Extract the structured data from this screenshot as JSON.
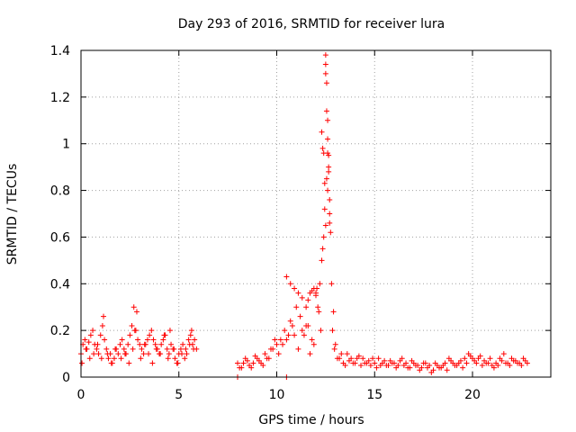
{
  "chart_data": {
    "type": "scatter",
    "title": "Day 293 of 2016, SRMTID for receiver lura",
    "xlabel": "GPS time / hours",
    "ylabel": "SRMTID / TECUs",
    "xlim": [
      0,
      24
    ],
    "ylim": [
      0,
      1.4
    ],
    "xticks": [
      "0",
      "5",
      "10",
      "15",
      "20"
    ],
    "yticks": [
      "0",
      "0.2",
      "0.4",
      "0.6",
      "0.8",
      "1",
      "1.2",
      "1.4"
    ],
    "grid": true,
    "marker": "+",
    "series_color": "#ff0000",
    "series": [
      {
        "x": [
          0.0,
          0.1,
          0.2,
          0.3,
          0.4,
          0.5,
          0.6,
          0.7,
          0.8,
          0.9,
          1.0,
          1.1,
          1.2,
          1.3,
          1.4,
          1.5,
          1.6,
          1.7,
          1.8,
          1.9,
          2.0,
          2.1,
          2.2,
          2.3,
          2.4,
          2.5,
          2.6,
          2.7,
          2.8,
          2.9,
          3.0,
          3.1,
          3.2,
          3.3,
          3.4,
          3.5,
          3.6,
          3.7,
          3.8,
          3.9,
          4.0,
          4.1,
          4.2,
          4.3,
          4.4,
          4.5,
          4.6,
          4.7,
          4.8,
          4.9,
          5.0,
          5.1,
          5.2,
          5.3,
          5.4,
          5.5,
          5.6,
          5.7,
          5.8,
          5.9,
          0.05,
          0.25,
          0.45,
          0.65,
          0.85,
          1.05,
          1.15,
          1.35,
          1.55,
          1.75,
          2.05,
          2.25,
          2.45,
          2.65,
          2.75,
          2.85,
          3.05,
          3.25,
          3.45,
          3.65,
          3.85,
          4.05,
          4.25,
          4.45,
          4.55,
          4.75,
          4.95,
          5.15,
          5.35,
          5.55,
          5.65,
          5.75,
          8.0,
          8.2,
          8.4,
          8.6,
          8.8,
          9.0,
          9.2,
          9.4,
          9.6,
          9.8,
          10.0,
          10.2,
          10.4,
          10.6,
          10.8,
          11.0,
          11.2,
          11.4,
          11.6,
          11.8,
          12.0,
          12.1,
          12.2,
          12.3,
          12.4,
          12.5,
          12.6,
          12.7,
          12.8,
          12.9,
          13.0,
          13.2,
          13.4,
          13.6,
          13.8,
          14.0,
          14.2,
          14.4,
          14.6,
          14.8,
          15.0,
          15.2,
          15.4,
          15.6,
          15.8,
          16.0,
          16.2,
          16.4,
          16.6,
          16.8,
          17.0,
          17.2,
          17.4,
          17.6,
          17.8,
          18.0,
          18.2,
          18.4,
          18.6,
          18.8,
          19.0,
          19.2,
          19.4,
          19.6,
          19.8,
          20.0,
          20.2,
          20.4,
          20.6,
          20.8,
          21.0,
          21.2,
          21.4,
          21.6,
          21.8,
          22.0,
          22.2,
          22.4,
          22.6,
          22.8,
          8.1,
          8.3,
          8.5,
          8.7,
          8.9,
          9.1,
          9.3,
          9.5,
          9.7,
          9.9,
          10.1,
          10.3,
          10.5,
          10.7,
          10.9,
          11.1,
          11.3,
          11.5,
          11.7,
          11.9,
          12.05,
          12.15,
          12.25,
          12.35,
          12.45,
          12.55,
          12.65,
          12.75,
          12.85,
          12.95,
          13.1,
          13.3,
          13.5,
          13.7,
          13.9,
          14.1,
          14.3,
          14.5,
          14.7,
          14.9,
          15.1,
          15.3,
          15.5,
          15.7,
          15.9,
          16.1,
          16.3,
          16.5,
          16.7,
          16.9,
          17.1,
          17.3,
          17.5,
          17.7,
          17.9,
          18.1,
          18.3,
          18.5,
          18.7,
          18.9,
          19.1,
          19.3,
          19.5,
          19.7,
          19.9,
          20.1,
          20.3,
          20.5,
          20.7,
          20.9,
          21.1,
          21.3,
          21.5,
          21.7,
          21.9,
          22.1,
          22.3,
          22.5,
          22.7,
          12.5,
          12.5,
          12.5,
          12.55,
          12.55,
          12.6,
          12.6,
          12.6,
          12.65,
          12.65,
          12.7,
          12.7,
          12.3,
          12.35,
          12.4,
          12.45,
          11.5,
          11.6,
          11.7,
          11.8,
          11.9,
          12.0,
          10.5,
          10.7,
          10.9,
          11.1,
          11.3,
          8.0,
          10.5
        ],
        "y": [
          0.1,
          0.14,
          0.16,
          0.12,
          0.15,
          0.18,
          0.2,
          0.14,
          0.12,
          0.1,
          0.18,
          0.22,
          0.16,
          0.12,
          0.08,
          0.1,
          0.06,
          0.08,
          0.12,
          0.1,
          0.14,
          0.16,
          0.12,
          0.1,
          0.14,
          0.18,
          0.22,
          0.3,
          0.2,
          0.16,
          0.14,
          0.12,
          0.1,
          0.14,
          0.16,
          0.18,
          0.2,
          0.16,
          0.14,
          0.12,
          0.1,
          0.14,
          0.16,
          0.18,
          0.12,
          0.1,
          0.14,
          0.12,
          0.08,
          0.06,
          0.1,
          0.12,
          0.14,
          0.08,
          0.1,
          0.16,
          0.18,
          0.14,
          0.16,
          0.12,
          0.06,
          0.12,
          0.08,
          0.1,
          0.14,
          0.08,
          0.26,
          0.1,
          0.06,
          0.12,
          0.08,
          0.1,
          0.06,
          0.12,
          0.2,
          0.28,
          0.08,
          0.14,
          0.1,
          0.06,
          0.12,
          0.1,
          0.18,
          0.08,
          0.2,
          0.12,
          0.06,
          0.1,
          0.12,
          0.14,
          0.2,
          0.12,
          0.06,
          0.04,
          0.08,
          0.05,
          0.06,
          0.08,
          0.06,
          0.1,
          0.08,
          0.12,
          0.14,
          0.16,
          0.2,
          0.18,
          0.22,
          0.3,
          0.26,
          0.18,
          0.22,
          0.16,
          0.35,
          0.3,
          0.4,
          0.5,
          0.6,
          0.65,
          0.8,
          0.7,
          0.4,
          0.28,
          0.14,
          0.08,
          0.06,
          0.1,
          0.08,
          0.06,
          0.09,
          0.08,
          0.06,
          0.05,
          0.06,
          0.08,
          0.06,
          0.05,
          0.07,
          0.06,
          0.05,
          0.08,
          0.06,
          0.04,
          0.06,
          0.05,
          0.04,
          0.06,
          0.05,
          0.03,
          0.05,
          0.04,
          0.06,
          0.08,
          0.06,
          0.05,
          0.07,
          0.08,
          0.1,
          0.08,
          0.06,
          0.09,
          0.07,
          0.06,
          0.05,
          0.06,
          0.08,
          0.1,
          0.06,
          0.08,
          0.07,
          0.06,
          0.08,
          0.06,
          0.04,
          0.06,
          0.07,
          0.04,
          0.09,
          0.07,
          0.05,
          0.08,
          0.12,
          0.16,
          0.1,
          0.14,
          0.16,
          0.24,
          0.18,
          0.12,
          0.2,
          0.22,
          0.1,
          0.14,
          0.38,
          0.28,
          0.2,
          0.55,
          0.72,
          0.85,
          0.95,
          0.62,
          0.2,
          0.12,
          0.08,
          0.1,
          0.05,
          0.07,
          0.06,
          0.08,
          0.05,
          0.06,
          0.07,
          0.08,
          0.04,
          0.05,
          0.07,
          0.05,
          0.06,
          0.04,
          0.07,
          0.05,
          0.04,
          0.07,
          0.05,
          0.03,
          0.06,
          0.04,
          0.02,
          0.06,
          0.04,
          0.05,
          0.03,
          0.07,
          0.05,
          0.06,
          0.04,
          0.06,
          0.09,
          0.07,
          0.08,
          0.05,
          0.06,
          0.08,
          0.04,
          0.05,
          0.07,
          0.06,
          0.05,
          0.07,
          0.06,
          0.05,
          0.07,
          1.38,
          1.34,
          1.3,
          1.26,
          1.14,
          1.1,
          1.02,
          0.96,
          0.9,
          0.88,
          0.76,
          0.66,
          1.05,
          0.98,
          0.96,
          0.83,
          0.3,
          0.33,
          0.36,
          0.37,
          0.38,
          0.36,
          0.43,
          0.4,
          0.38,
          0.36,
          0.34,
          0.0,
          0.0
        ]
      }
    ]
  }
}
